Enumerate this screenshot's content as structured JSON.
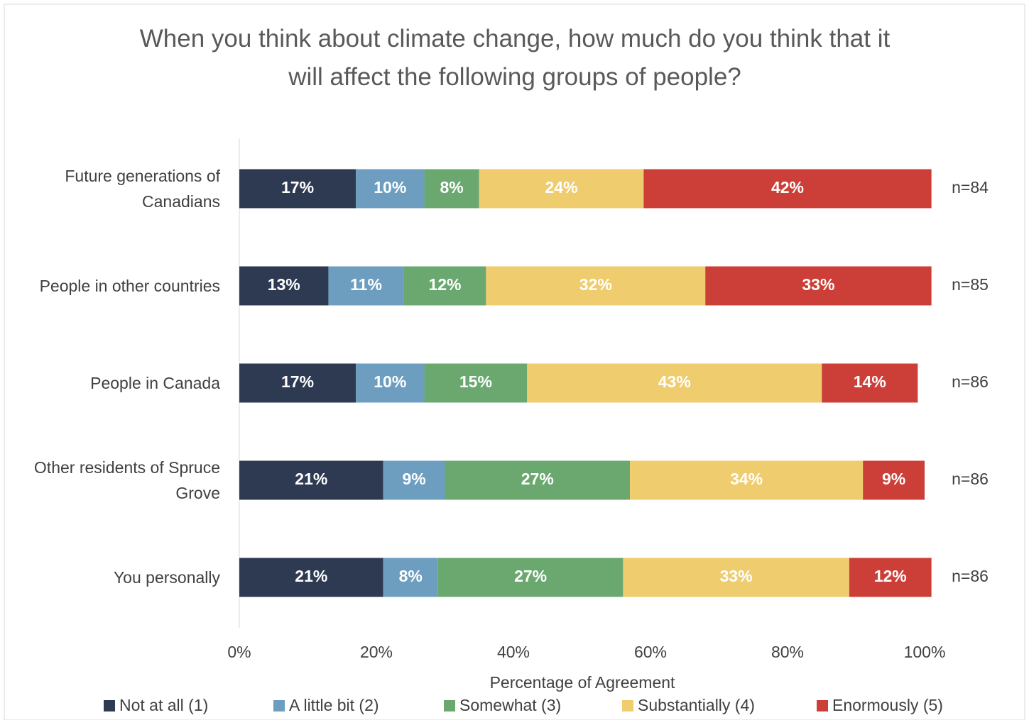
{
  "chart_data": {
    "type": "stacked-bar-horizontal",
    "title": "When you think about climate change, how much do you think that it will affect the following groups of people?",
    "categories": [
      "Future generations of Canadians",
      "People in other countries",
      "People in Canada",
      "Other residents of Spruce Grove",
      "You personally"
    ],
    "n_labels": [
      "n=84",
      "n=85",
      "n=86",
      "n=86",
      "n=86"
    ],
    "xlabel": "Percentage of Agreement",
    "xlim": [
      0,
      100
    ],
    "xticks": [
      {
        "value": 0,
        "label": "0%"
      },
      {
        "value": 20,
        "label": "20%"
      },
      {
        "value": 40,
        "label": "40%"
      },
      {
        "value": 60,
        "label": "60%"
      },
      {
        "value": 80,
        "label": "80%"
      },
      {
        "value": 100,
        "label": "100%"
      }
    ],
    "grid": false,
    "legend": "bottom",
    "series": [
      {
        "name": "Not at all (1)",
        "color": "#2e3a52",
        "values": [
          17,
          13,
          17,
          21,
          21
        ],
        "value_labels": [
          "17%",
          "13%",
          "17%",
          "21%",
          "21%"
        ]
      },
      {
        "name": "A little bit (2)",
        "color": "#6d9ec0",
        "values": [
          10,
          11,
          10,
          9,
          8
        ],
        "value_labels": [
          "10%",
          "11%",
          "10%",
          "9%",
          "8%"
        ]
      },
      {
        "name": "Somewhat (3)",
        "color": "#6aa870",
        "values": [
          8,
          12,
          15,
          27,
          27
        ],
        "value_labels": [
          "8%",
          "12%",
          "15%",
          "27%",
          "27%"
        ]
      },
      {
        "name": "Substantially (4)",
        "color": "#efcd6e",
        "values": [
          24,
          32,
          43,
          34,
          33
        ],
        "value_labels": [
          "24%",
          "32%",
          "43%",
          "34%",
          "33%"
        ]
      },
      {
        "name": "Enormously (5)",
        "color": "#cc3f38",
        "values": [
          42,
          33,
          14,
          9,
          12
        ],
        "value_labels": [
          "42%",
          "33%",
          "14%",
          "9%",
          "12%"
        ]
      }
    ]
  }
}
